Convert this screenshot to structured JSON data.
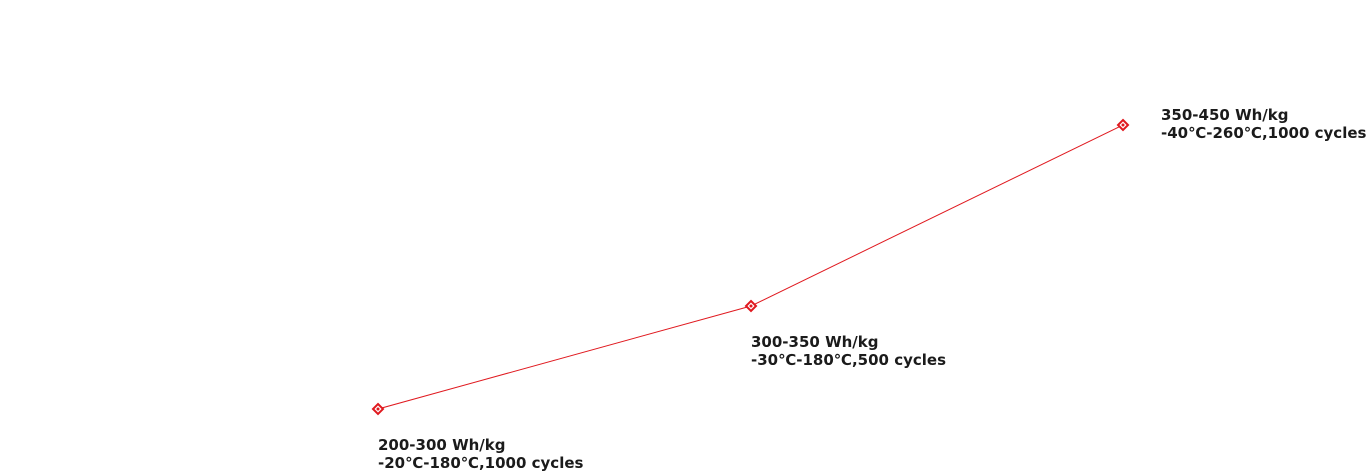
{
  "chart_data": {
    "type": "line",
    "title": "",
    "xlabel": "",
    "ylabel": "",
    "grid": false,
    "legend": false,
    "line_color": "#e0191f",
    "points": [
      {
        "x": 1,
        "y": 1,
        "label_line1": "200-300 Wh/kg",
        "label_line2": "-20℃-180℃,1000 cycles"
      },
      {
        "x": 2,
        "y": 2,
        "label_line1": "300-350 Wh/kg",
        "label_line2": "-30℃-180℃,500 cycles"
      },
      {
        "x": 3,
        "y": 3,
        "label_line1": "350-450 Wh/kg",
        "label_line2": "-40℃-260℃,1000 cycles"
      }
    ]
  }
}
